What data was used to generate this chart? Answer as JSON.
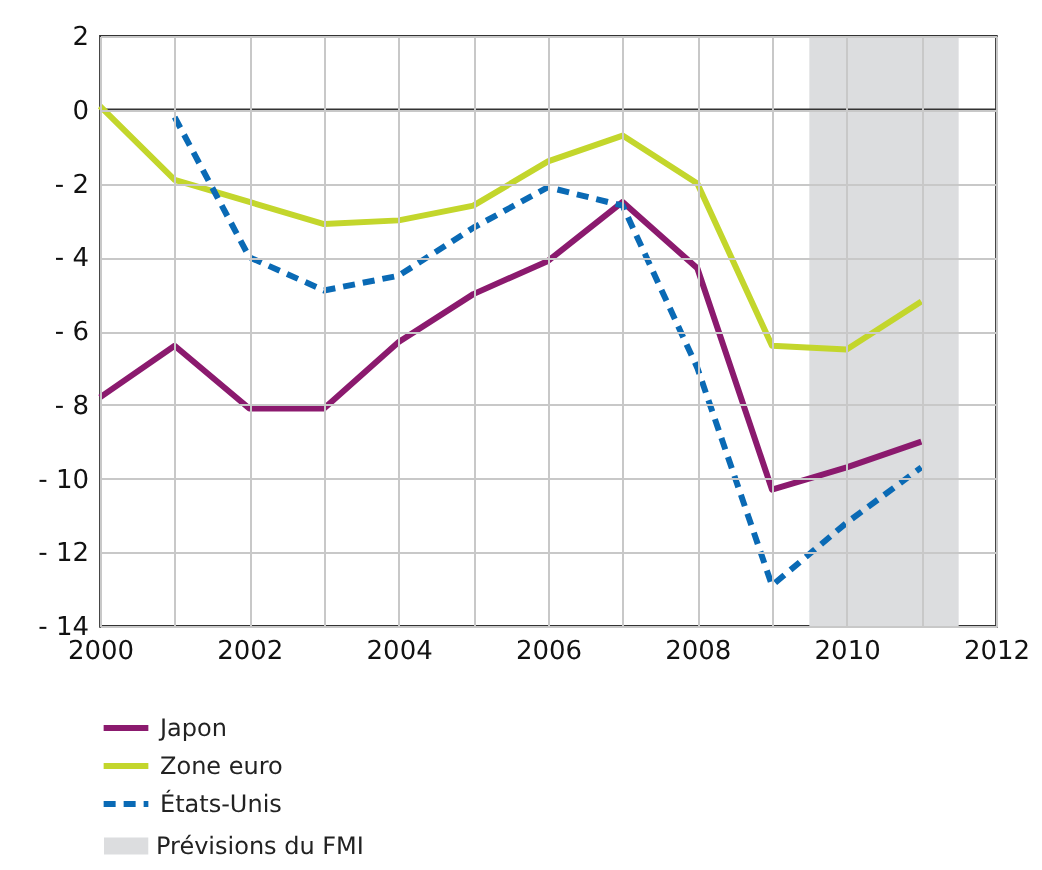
{
  "chart_data": {
    "type": "line",
    "x": [
      2000,
      2001,
      2002,
      2003,
      2004,
      2005,
      2006,
      2007,
      2008,
      2009,
      2010,
      2011
    ],
    "series": [
      {
        "name": "Japon",
        "color": "#8b1a6e",
        "line_style": "solid",
        "values": [
          -7.8,
          -6.4,
          -8.1,
          -8.1,
          -6.3,
          -5.0,
          -4.1,
          -2.5,
          -4.3,
          -10.3,
          -9.7,
          -9.0
        ]
      },
      {
        "name": "Zone euro",
        "color": "#c3d62c",
        "line_style": "solid",
        "values": [
          0.1,
          -1.9,
          -2.5,
          -3.1,
          -3.0,
          -2.6,
          -1.4,
          -0.7,
          -2.0,
          -6.4,
          -6.5,
          -5.2
        ]
      },
      {
        "name": "États-Unis",
        "color": "#0a6ab5",
        "line_style": "dashed",
        "values": [
          null,
          -0.2,
          -4.0,
          -4.9,
          -4.5,
          -3.2,
          -2.1,
          -2.6,
          -7.0,
          -12.9,
          -11.2,
          -9.7
        ]
      }
    ],
    "bands": [
      {
        "axis": "x",
        "from": 2009.5,
        "to": 2011.5,
        "label": "Prévisions du FMI",
        "color": "#dcdddf"
      }
    ],
    "ref_lines": [
      {
        "axis": "y",
        "value": 0,
        "color": "#333333"
      }
    ],
    "xlim": [
      2000,
      2012
    ],
    "xticks": [
      2000,
      {
        "value": 2001,
        "label": null
      },
      2002,
      {
        "value": 2003,
        "label": null
      },
      2004,
      {
        "value": 2005,
        "label": null
      },
      2006,
      {
        "value": 2007,
        "label": null
      },
      2008,
      {
        "value": 2009,
        "label": null
      },
      2010,
      {
        "value": 2011,
        "label": null
      },
      2012
    ],
    "ylim": [
      -14,
      2
    ],
    "yticks": [
      {
        "value": -14,
        "label": "- 14"
      },
      {
        "value": -12,
        "label": "- 12"
      },
      {
        "value": -10,
        "label": "- 10"
      },
      {
        "value": -8,
        "label": "- 8"
      },
      {
        "value": -6,
        "label": "- 6"
      },
      {
        "value": -4,
        "label": "- 4"
      },
      {
        "value": -2,
        "label": "- 2"
      },
      0,
      2
    ],
    "grid": true,
    "legend": "bottom left"
  }
}
